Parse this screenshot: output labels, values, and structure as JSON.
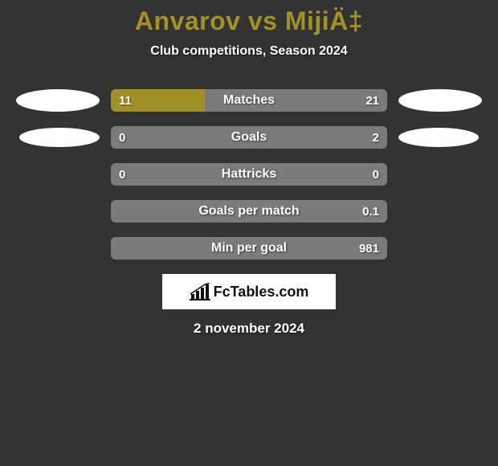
{
  "title": "Anvarov vs MijiÄ‡",
  "subtitle": "Club competitions, Season 2024",
  "date": "2 november 2024",
  "logo_text": "FcTables.com",
  "colors": {
    "accent": "#a29128",
    "bar_inactive": "#7b7b7b",
    "background": "#333333",
    "text": "#ffffff",
    "placeholder": "#ffffff"
  },
  "rows": [
    {
      "label": "Matches",
      "left": "11",
      "right": "21",
      "left_pct": 34,
      "show_placeholders": true,
      "ph_small": false
    },
    {
      "label": "Goals",
      "left": "0",
      "right": "2",
      "left_pct": 0,
      "show_placeholders": true,
      "ph_small": true
    },
    {
      "label": "Hattricks",
      "left": "0",
      "right": "0",
      "left_pct": 0,
      "show_placeholders": false,
      "ph_small": false
    },
    {
      "label": "Goals per match",
      "left": "",
      "right": "0.1",
      "left_pct": 0,
      "show_placeholders": false,
      "ph_small": false
    },
    {
      "label": "Min per goal",
      "left": "",
      "right": "981",
      "left_pct": 0,
      "show_placeholders": false,
      "ph_small": false
    }
  ]
}
